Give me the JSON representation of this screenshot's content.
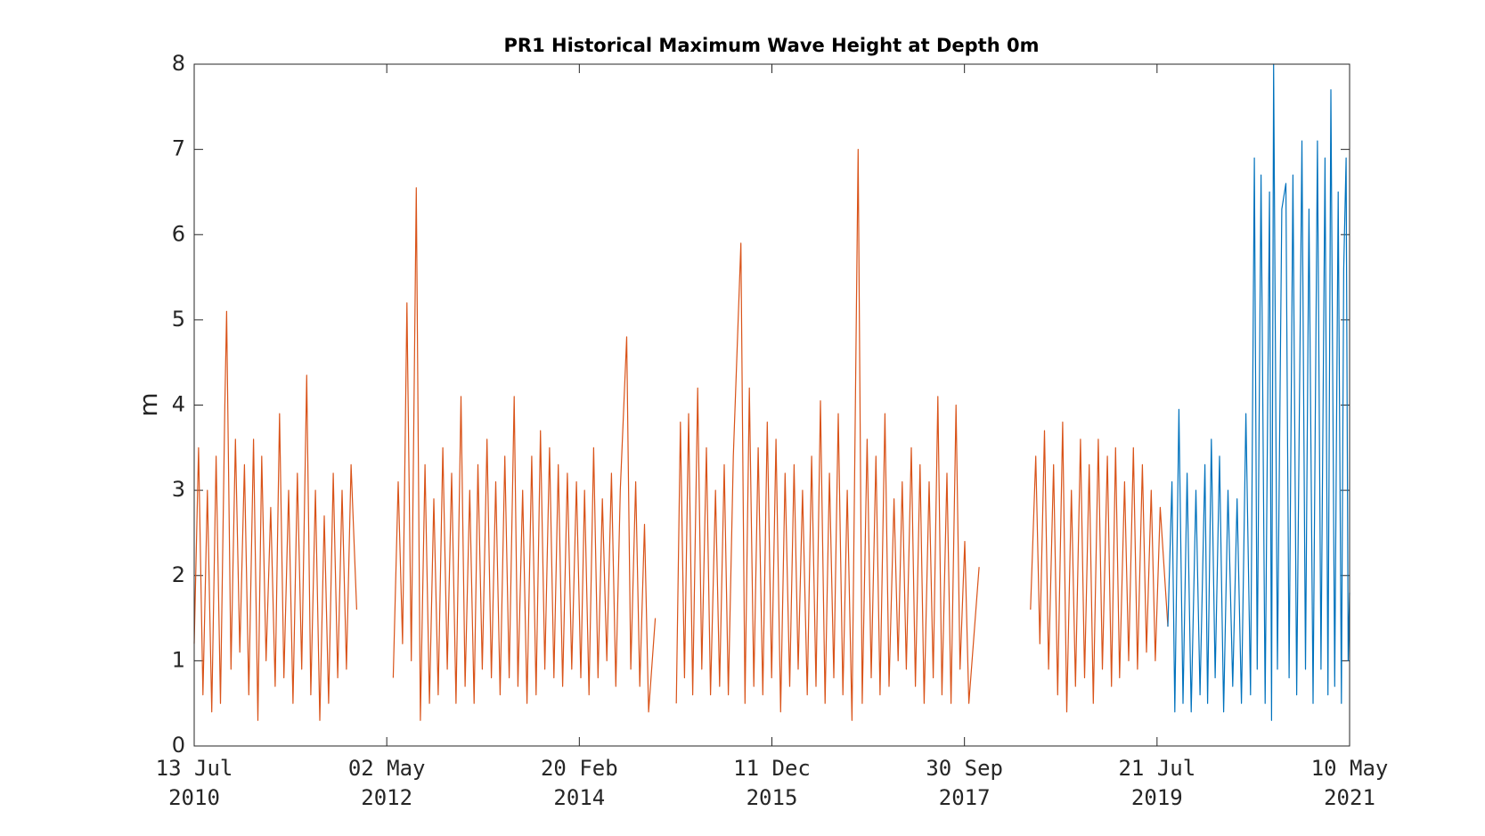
{
  "chart_data": {
    "type": "line",
    "title": "PR1 Historical Maximum Wave Height at Depth 0m",
    "y_label": "m",
    "xlim": [
      "2010-07-13",
      "2021-05-10"
    ],
    "xticks": [
      {
        "value": "2010-07-13",
        "label": [
          "13 Jul",
          "2010"
        ]
      },
      {
        "value": "2012-05-02",
        "label": [
          "02 May",
          "2012"
        ]
      },
      {
        "value": "2014-02-20",
        "label": [
          "20 Feb",
          "2014"
        ]
      },
      {
        "value": "2015-12-11",
        "label": [
          "11 Dec",
          "2015"
        ]
      },
      {
        "value": "2017-09-30",
        "label": [
          "30 Sep",
          "2017"
        ]
      },
      {
        "value": "2019-07-21",
        "label": [
          "21 Jul",
          "2019"
        ]
      },
      {
        "value": "2021-05-10",
        "label": [
          "10 May",
          "2021"
        ]
      }
    ],
    "ylim": [
      0,
      8
    ],
    "yticks": [
      0,
      1,
      2,
      3,
      4,
      5,
      6,
      7,
      8
    ],
    "series": [
      {
        "color": "#d95319",
        "x": [
          "2010-07-13",
          "2010-07-28",
          "2010-08-12",
          "2010-08-27",
          "2010-09-11",
          "2010-09-26",
          "2010-10-11",
          "2010-10-26",
          "2010-11-01",
          "2010-11-16",
          "2010-12-01",
          "2010-12-16",
          "2011-01-01",
          "2011-01-16",
          "2011-02-01",
          "2011-02-16",
          "2011-03-01",
          "2011-03-16",
          "2011-04-01",
          "2011-04-16",
          "2011-05-01",
          "2011-05-16",
          "2011-06-01",
          "2011-06-16",
          "2011-07-01",
          "2011-07-16",
          "2011-08-02",
          "2011-08-16",
          "2011-09-01",
          "2011-09-16",
          "2011-10-01",
          "2011-10-16",
          "2011-11-01",
          "2011-11-16",
          "2011-12-01",
          "2011-12-16",
          "2012-01-01",
          "2012-01-20",
          "2012-03-01",
          "2012-05-24",
          "2012-06-10",
          "2012-06-25",
          "2012-07-10",
          "2012-07-25",
          "2012-08-11",
          "2012-08-25",
          "2012-09-10",
          "2012-09-25",
          "2012-10-10",
          "2012-10-25",
          "2012-11-10",
          "2012-11-25",
          "2012-12-10",
          "2012-12-25",
          "2013-01-11",
          "2013-01-25",
          "2013-02-10",
          "2013-02-25",
          "2013-03-10",
          "2013-03-25",
          "2013-04-10",
          "2013-04-25",
          "2013-05-10",
          "2013-05-25",
          "2013-06-10",
          "2013-06-25",
          "2013-07-12",
          "2013-07-25",
          "2013-08-10",
          "2013-08-25",
          "2013-09-10",
          "2013-09-25",
          "2013-10-10",
          "2013-10-25",
          "2013-11-10",
          "2013-11-25",
          "2013-12-10",
          "2013-12-25",
          "2014-01-10",
          "2014-01-25",
          "2014-02-10",
          "2014-02-25",
          "2014-03-10",
          "2014-03-25",
          "2014-04-10",
          "2014-04-25",
          "2014-05-10",
          "2014-05-25",
          "2014-06-10",
          "2014-06-25",
          "2014-07-10",
          "2014-08-01",
          "2014-08-15",
          "2014-09-01",
          "2014-09-15",
          "2014-10-01",
          "2014-10-15",
          "2014-11-07",
          "2014-12-10",
          "2015-01-18",
          "2015-02-01",
          "2015-02-15",
          "2015-03-01",
          "2015-03-15",
          "2015-04-01",
          "2015-04-15",
          "2015-05-01",
          "2015-05-15",
          "2015-06-01",
          "2015-06-15",
          "2015-07-01",
          "2015-07-15",
          "2015-08-01",
          "2015-08-27",
          "2015-09-10",
          "2015-09-25",
          "2015-10-10",
          "2015-10-25",
          "2015-11-10",
          "2015-11-25",
          "2015-12-10",
          "2015-12-25",
          "2016-01-10",
          "2016-01-25",
          "2016-02-10",
          "2016-02-25",
          "2016-03-10",
          "2016-03-25",
          "2016-04-10",
          "2016-04-25",
          "2016-05-10",
          "2016-05-25",
          "2016-06-10",
          "2016-06-25",
          "2016-07-10",
          "2016-07-25",
          "2016-08-10",
          "2016-08-25",
          "2016-09-10",
          "2016-10-01",
          "2016-10-15",
          "2016-11-01",
          "2016-11-15",
          "2016-12-01",
          "2016-12-15",
          "2017-01-01",
          "2017-01-15",
          "2017-02-01",
          "2017-02-15",
          "2017-03-01",
          "2017-03-15",
          "2017-04-01",
          "2017-04-15",
          "2017-05-01",
          "2017-05-15",
          "2017-06-01",
          "2017-06-15",
          "2017-07-01",
          "2017-07-15",
          "2017-08-01",
          "2017-08-15",
          "2017-09-01",
          "2017-09-15",
          "2017-10-01",
          "2017-10-15",
          "2017-11-19",
          "2018-02-01",
          "2018-05-14",
          "2018-06-01",
          "2018-06-15",
          "2018-07-01",
          "2018-07-15",
          "2018-08-01",
          "2018-08-15",
          "2018-09-01",
          "2018-09-15",
          "2018-10-01",
          "2018-10-15",
          "2018-11-01",
          "2018-11-15",
          "2018-12-01",
          "2018-12-15",
          "2019-01-01",
          "2019-01-15",
          "2019-02-01",
          "2019-02-15",
          "2019-03-01",
          "2019-03-15",
          "2019-04-01",
          "2019-04-15",
          "2019-05-01",
          "2019-05-15",
          "2019-06-01",
          "2019-06-15",
          "2019-07-01",
          "2019-07-15",
          "2019-08-01",
          "2019-08-27"
        ],
        "values": [
          1.2,
          3.5,
          0.6,
          3.0,
          0.4,
          3.4,
          0.5,
          4.0,
          5.1,
          0.9,
          3.6,
          1.1,
          3.3,
          0.6,
          3.6,
          0.3,
          3.4,
          1.0,
          2.8,
          0.7,
          3.9,
          0.8,
          3.0,
          0.5,
          3.2,
          0.9,
          4.35,
          0.6,
          3.0,
          0.3,
          2.7,
          0.5,
          3.2,
          0.8,
          3.0,
          0.9,
          3.3,
          1.6,
          null,
          0.8,
          3.1,
          1.2,
          5.2,
          1.0,
          6.55,
          0.3,
          3.3,
          0.5,
          2.9,
          0.6,
          3.5,
          0.9,
          3.2,
          0.5,
          4.1,
          0.7,
          3.0,
          0.5,
          3.3,
          0.9,
          3.6,
          0.8,
          3.1,
          0.6,
          3.4,
          0.8,
          4.1,
          0.7,
          3.0,
          0.5,
          3.4,
          0.6,
          3.7,
          0.9,
          3.5,
          0.8,
          3.3,
          0.7,
          3.2,
          0.9,
          3.1,
          0.8,
          3.0,
          0.6,
          3.5,
          0.8,
          2.9,
          1.0,
          3.2,
          0.7,
          3.0,
          4.8,
          0.9,
          3.1,
          0.7,
          2.6,
          0.4,
          1.5,
          null,
          0.5,
          3.8,
          0.8,
          3.9,
          0.6,
          4.2,
          0.9,
          3.5,
          0.6,
          3.0,
          0.7,
          3.3,
          0.6,
          3.4,
          5.9,
          0.5,
          4.2,
          0.7,
          3.5,
          0.6,
          3.8,
          0.8,
          3.6,
          0.4,
          3.2,
          0.7,
          3.3,
          0.9,
          3.0,
          0.6,
          3.4,
          0.7,
          4.05,
          0.5,
          3.2,
          0.8,
          3.9,
          0.6,
          3.0,
          0.3,
          7.0,
          0.5,
          3.6,
          0.8,
          3.4,
          0.6,
          3.9,
          0.7,
          2.9,
          1.0,
          3.1,
          0.9,
          3.5,
          0.7,
          3.3,
          0.5,
          3.1,
          0.8,
          4.1,
          0.6,
          3.2,
          0.5,
          4.0,
          0.9,
          2.4,
          0.5,
          2.1,
          null,
          1.6,
          3.4,
          1.2,
          3.7,
          0.9,
          3.3,
          0.6,
          3.8,
          0.4,
          3.0,
          0.7,
          3.6,
          0.8,
          3.3,
          0.5,
          3.6,
          0.9,
          3.4,
          0.7,
          3.5,
          0.8,
          3.1,
          1.0,
          3.5,
          0.9,
          3.3,
          1.1,
          3.0,
          1.0,
          2.8,
          1.4
        ]
      },
      {
        "color": "#0072bd",
        "x": [
          "2019-08-27",
          "2019-09-10",
          "2019-09-20",
          "2019-10-04",
          "2019-10-18",
          "2019-11-01",
          "2019-11-15",
          "2019-12-01",
          "2019-12-15",
          "2020-01-01",
          "2020-01-10",
          "2020-01-23",
          "2020-02-05",
          "2020-02-20",
          "2020-03-05",
          "2020-03-20",
          "2020-04-05",
          "2020-04-20",
          "2020-05-05",
          "2020-05-20",
          "2020-06-05",
          "2020-06-18",
          "2020-06-28",
          "2020-07-11",
          "2020-07-25",
          "2020-08-09",
          "2020-08-16",
          "2020-08-23",
          "2020-09-05",
          "2020-09-20",
          "2020-10-04",
          "2020-10-15",
          "2020-10-28",
          "2020-11-10",
          "2020-11-28",
          "2020-12-10",
          "2020-12-22",
          "2021-01-05",
          "2021-01-20",
          "2021-02-01",
          "2021-02-15",
          "2021-02-25",
          "2021-03-07",
          "2021-03-20",
          "2021-04-01",
          "2021-04-12",
          "2021-04-20",
          "2021-04-28",
          "2021-05-05",
          "2021-05-10"
        ],
        "values": [
          1.4,
          3.1,
          0.4,
          3.95,
          0.5,
          3.2,
          0.4,
          3.0,
          0.6,
          3.3,
          0.5,
          3.6,
          0.8,
          3.4,
          0.4,
          3.0,
          0.7,
          2.9,
          0.5,
          3.9,
          0.6,
          6.9,
          0.9,
          6.7,
          0.5,
          6.5,
          0.3,
          8.0,
          0.9,
          6.3,
          6.6,
          0.8,
          6.7,
          0.6,
          7.1,
          0.9,
          6.3,
          0.5,
          7.1,
          0.9,
          6.9,
          0.6,
          7.7,
          0.7,
          6.5,
          0.5,
          5.6,
          6.9,
          1.0,
          1.8
        ]
      }
    ]
  }
}
